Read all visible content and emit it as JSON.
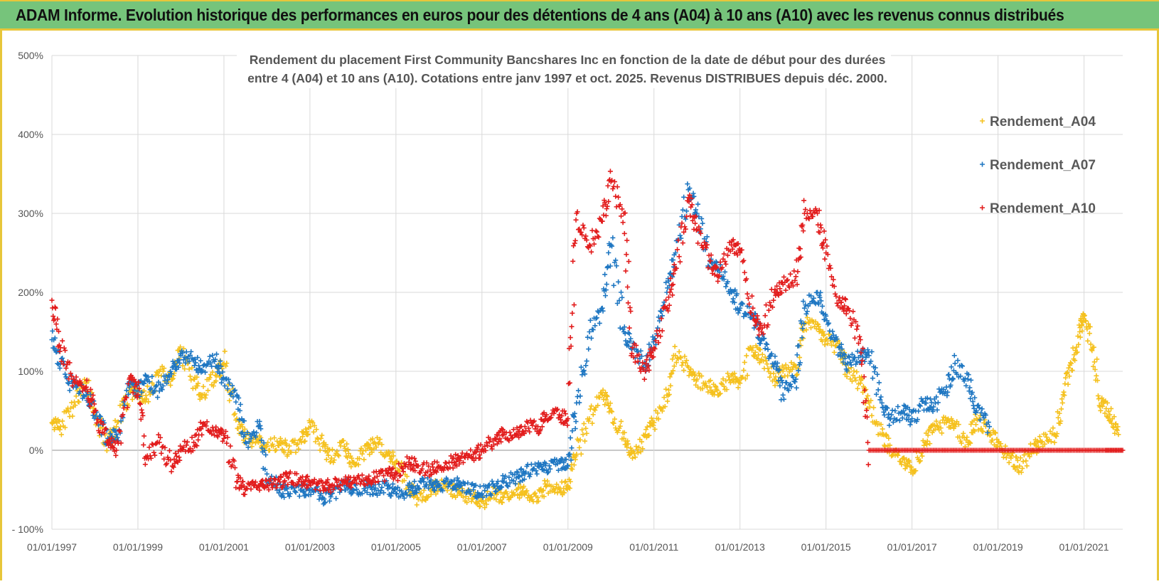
{
  "banner": {
    "title": "ADAM Informe. Evolution historique des performances en euros pour des détentions de 4 ans (A04) à 10 ans (A10) avec les revenus connus distribués"
  },
  "colors": {
    "banner_bg": "#76c47b",
    "banner_border": "#e7c63a",
    "A04": "#f5c11e",
    "A07": "#1f77c2",
    "A10": "#e21d1d",
    "grid": "#d9d9d9"
  },
  "chart_data": {
    "type": "scatter",
    "title": "Rendement du placement First Community Bancshares Inc en fonction de la date de début pour des durées",
    "subtitle": "entre 4 (A04) et 10 ans (A10). Cotations entre janv 1997 et oct. 2025. Revenus DISTRIBUES depuis déc. 2000.",
    "xlabel": "",
    "ylabel": "",
    "xlim": [
      1997.0,
      2021.9
    ],
    "ylim": [
      -100,
      500
    ],
    "yticks": [
      -100,
      0,
      100,
      200,
      300,
      400,
      500
    ],
    "ytick_labels": [
      "- 100%",
      "0%",
      "100%",
      "200%",
      "300%",
      "400%",
      "500%"
    ],
    "xticks": [
      1997,
      1999,
      2001,
      2003,
      2005,
      2007,
      2009,
      2011,
      2013,
      2015,
      2017,
      2019,
      2021
    ],
    "xtick_labels": [
      "01/01/1997",
      "01/01/1999",
      "01/01/2001",
      "01/01/2003",
      "01/01/2005",
      "01/01/2007",
      "01/01/2009",
      "01/01/2011",
      "01/01/2013",
      "01/01/2015",
      "01/01/2017",
      "01/01/2019",
      "01/01/2021"
    ],
    "grid": true,
    "legend_position": "top-right",
    "series": [
      {
        "name": "Rendement_A04",
        "x": [
          1997.0,
          1997.2,
          1997.5,
          1997.8,
          1998.0,
          1998.3,
          1998.5,
          1998.8,
          1999.0,
          1999.2,
          1999.5,
          1999.8,
          2000.0,
          2000.3,
          2000.5,
          2000.8,
          2001.0,
          2001.3,
          2001.5,
          2001.8,
          2002.0,
          2002.3,
          2002.5,
          2002.8,
          2003.0,
          2003.3,
          2003.5,
          2003.8,
          2004.0,
          2004.3,
          2004.5,
          2004.8,
          2005.0,
          2005.3,
          2005.5,
          2005.8,
          2006.0,
          2006.3,
          2006.5,
          2006.8,
          2007.0,
          2007.3,
          2007.5,
          2007.8,
          2008.0,
          2008.3,
          2008.5,
          2008.8,
          2009.0,
          2009.2,
          2009.5,
          2009.8,
          2010.0,
          2010.3,
          2010.5,
          2010.8,
          2011.0,
          2011.3,
          2011.5,
          2011.8,
          2012.0,
          2012.3,
          2012.5,
          2012.8,
          2013.0,
          2013.3,
          2013.5,
          2013.8,
          2014.0,
          2014.3,
          2014.5,
          2014.8,
          2015.0,
          2015.3,
          2015.5,
          2015.8,
          2016.0,
          2016.3,
          2016.5,
          2016.8,
          2017.0,
          2017.3,
          2017.5,
          2017.8,
          2018.0,
          2018.3,
          2018.5,
          2018.8,
          2019.0,
          2019.3,
          2019.5,
          2019.8,
          2020.0,
          2020.3,
          2020.5,
          2020.7,
          2020.9,
          2021.0,
          2021.2,
          2021.4,
          2021.6,
          2021.8
        ],
        "y": [
          35,
          30,
          55,
          85,
          45,
          10,
          30,
          75,
          70,
          65,
          100,
          90,
          125,
          90,
          70,
          95,
          110,
          40,
          15,
          10,
          5,
          10,
          0,
          10,
          35,
          5,
          -10,
          5,
          -15,
          0,
          10,
          -5,
          -15,
          -45,
          -60,
          -50,
          -45,
          -50,
          -55,
          -60,
          -65,
          -55,
          -60,
          -50,
          -55,
          -60,
          -45,
          -50,
          -45,
          -5,
          40,
          70,
          50,
          15,
          -10,
          20,
          35,
          70,
          120,
          105,
          90,
          80,
          70,
          95,
          85,
          130,
          115,
          90,
          100,
          105,
          160,
          160,
          140,
          130,
          100,
          85,
          60,
          20,
          0,
          -10,
          -25,
          10,
          25,
          35,
          30,
          10,
          40,
          20,
          10,
          -10,
          -20,
          0,
          10,
          20,
          60,
          110,
          150,
          170,
          130,
          60,
          45,
          20
        ]
      },
      {
        "name": "Rendement_A07",
        "x": [
          1997.0,
          1997.2,
          1997.5,
          1997.8,
          1998.0,
          1998.3,
          1998.5,
          1998.8,
          1999.0,
          1999.2,
          1999.5,
          1999.8,
          2000.0,
          2000.3,
          2000.5,
          2000.8,
          2001.0,
          2001.3,
          2001.5,
          2001.8,
          2002.0,
          2002.3,
          2002.5,
          2002.8,
          2003.0,
          2003.3,
          2003.5,
          2003.8,
          2004.0,
          2004.3,
          2004.5,
          2004.8,
          2005.0,
          2005.3,
          2005.5,
          2005.8,
          2006.0,
          2006.3,
          2006.5,
          2006.8,
          2007.0,
          2007.3,
          2007.5,
          2007.8,
          2008.0,
          2008.3,
          2008.5,
          2008.8,
          2009.0,
          2009.2,
          2009.5,
          2009.8,
          2010.0,
          2010.3,
          2010.5,
          2010.8,
          2011.0,
          2011.3,
          2011.5,
          2011.8,
          2012.0,
          2012.3,
          2012.5,
          2012.8,
          2013.0,
          2013.3,
          2013.5,
          2013.8,
          2014.0,
          2014.3,
          2014.5,
          2014.8,
          2015.0,
          2015.3,
          2015.5,
          2015.8,
          2016.0,
          2016.3,
          2016.5,
          2016.8,
          2017.0,
          2017.3,
          2017.5,
          2017.8,
          2018.0,
          2018.3,
          2018.5,
          2018.8
        ],
        "y": [
          140,
          110,
          80,
          70,
          50,
          15,
          20,
          80,
          75,
          90,
          75,
          105,
          120,
          115,
          100,
          115,
          90,
          70,
          10,
          30,
          -30,
          -50,
          -55,
          -50,
          -50,
          -60,
          -55,
          -45,
          -50,
          -45,
          -50,
          -45,
          -55,
          -50,
          -45,
          -40,
          -45,
          -40,
          -45,
          -50,
          -55,
          -45,
          -40,
          -35,
          -30,
          -20,
          -25,
          -15,
          -20,
          60,
          150,
          180,
          260,
          150,
          130,
          110,
          140,
          200,
          250,
          330,
          300,
          240,
          230,
          200,
          180,
          170,
          140,
          110,
          70,
          90,
          180,
          200,
          170,
          130,
          110,
          120,
          120,
          60,
          40,
          50,
          40,
          60,
          55,
          80,
          110,
          90,
          50,
          30
        ]
      },
      {
        "name": "Rendement_A10",
        "x": [
          1997.0,
          1997.2,
          1997.5,
          1997.8,
          1998.0,
          1998.3,
          1998.5,
          1998.8,
          1999.0,
          1999.2,
          1999.5,
          1999.8,
          2000.0,
          2000.3,
          2000.5,
          2000.8,
          2001.0,
          2001.3,
          2001.5,
          2001.8,
          2002.0,
          2002.3,
          2002.5,
          2002.8,
          2003.0,
          2003.3,
          2003.5,
          2003.8,
          2004.0,
          2004.3,
          2004.5,
          2004.8,
          2005.0,
          2005.3,
          2005.5,
          2005.8,
          2006.0,
          2006.3,
          2006.5,
          2006.8,
          2007.0,
          2007.3,
          2007.5,
          2007.8,
          2008.0,
          2008.3,
          2008.5,
          2008.8,
          2009.0,
          2009.2,
          2009.5,
          2009.8,
          2010.0,
          2010.3,
          2010.5,
          2010.8,
          2011.0,
          2011.3,
          2011.5,
          2011.8,
          2012.0,
          2012.3,
          2012.5,
          2012.8,
          2013.0,
          2013.3,
          2013.5,
          2013.8,
          2014.0,
          2014.3,
          2014.5,
          2014.8,
          2015.0,
          2015.3,
          2015.5,
          2015.8,
          2016.0,
          2016.5,
          2017.0,
          2017.5,
          2018.0,
          2018.5,
          2019.0,
          2019.5,
          2020.0,
          2020.5,
          2021.0,
          2021.5,
          2021.9
        ],
        "y": [
          190,
          130,
          90,
          80,
          50,
          10,
          0,
          90,
          70,
          -10,
          10,
          -20,
          0,
          10,
          30,
          25,
          15,
          -40,
          -50,
          -45,
          -45,
          -40,
          -35,
          -40,
          -40,
          -45,
          -45,
          -40,
          -40,
          -35,
          -35,
          -30,
          -30,
          -15,
          -20,
          -25,
          -20,
          -15,
          -10,
          -5,
          0,
          15,
          20,
          20,
          30,
          30,
          45,
          45,
          40,
          300,
          260,
          290,
          340,
          300,
          130,
          100,
          130,
          180,
          230,
          320,
          280,
          240,
          220,
          260,
          250,
          180,
          150,
          200,
          210,
          220,
          300,
          300,
          250,
          190,
          180,
          140,
          0,
          0,
          0,
          0,
          0,
          0,
          0,
          0,
          0,
          0,
          0,
          0,
          0
        ]
      }
    ]
  }
}
